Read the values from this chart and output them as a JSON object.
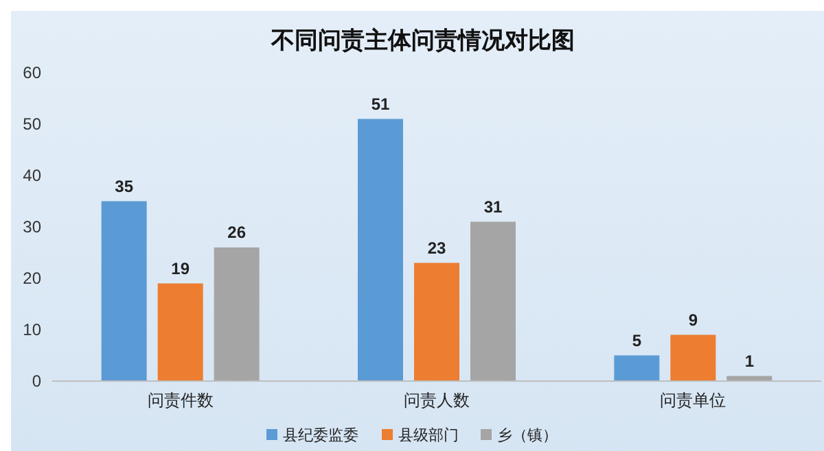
{
  "chart_data": {
    "type": "bar",
    "title": "不同问责主体问责情况对比图",
    "categories": [
      "问责件数",
      "问责人数",
      "问责单位"
    ],
    "series": [
      {
        "name": "县纪委监委",
        "color": "#5b9bd5",
        "values": [
          35,
          51,
          5
        ]
      },
      {
        "name": "县级部门",
        "color": "#ed7d31",
        "values": [
          19,
          23,
          9
        ]
      },
      {
        "name": "乡（镇）",
        "color": "#a5a5a5",
        "values": [
          26,
          31,
          1
        ]
      }
    ],
    "ylim": [
      0,
      60
    ],
    "yticks": [
      0,
      10,
      20,
      30,
      40,
      50,
      60
    ],
    "grid": false,
    "legend": "bottom",
    "data_labels": true
  }
}
